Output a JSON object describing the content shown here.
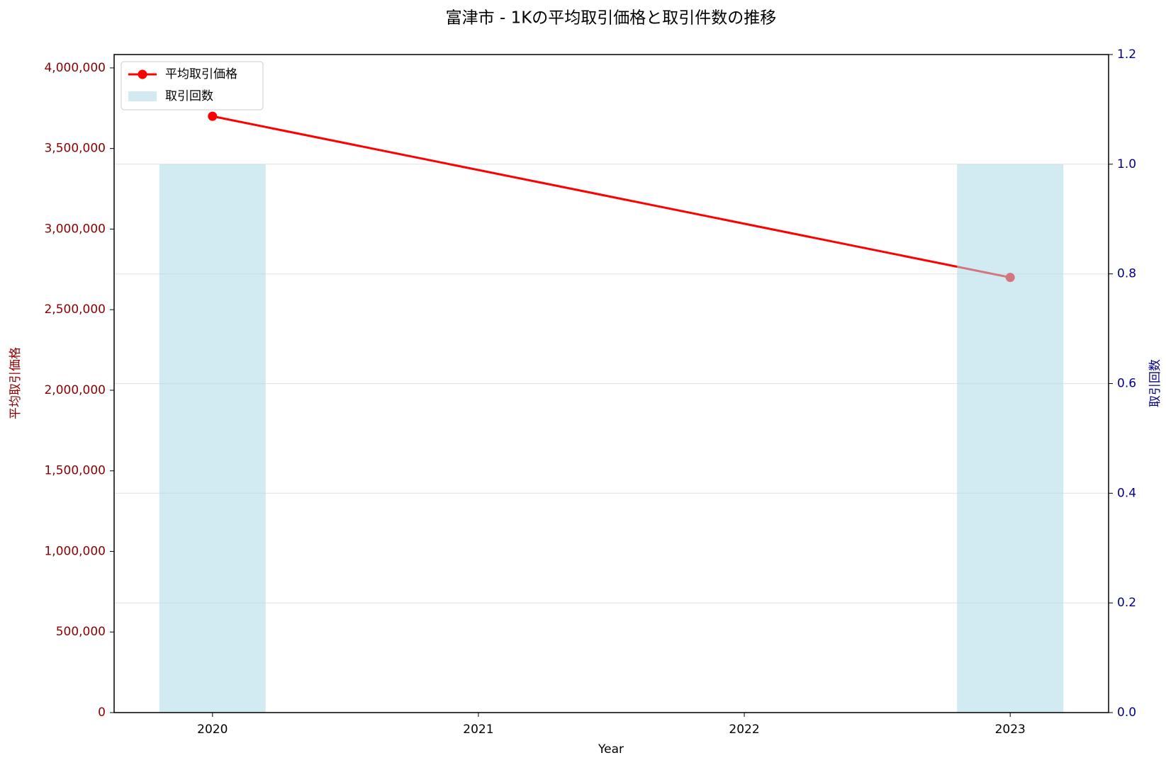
{
  "chart_data": {
    "type": "line",
    "title": "富津市 - 1Kの平均取引価格と取引件数の推移",
    "xlabel": "Year",
    "ylabel": "平均取引価格",
    "y2label": "取引回数",
    "x": [
      2020,
      2023
    ],
    "series": [
      {
        "name": "平均取引価格",
        "type": "line",
        "color": "#ff0000",
        "values": [
          3700000,
          2700000
        ]
      },
      {
        "name": "取引回数",
        "type": "bar",
        "color": "#add8e6",
        "axis": "y2",
        "values": [
          1,
          1
        ]
      }
    ],
    "xlim": [
      2019.63,
      2023.37
    ],
    "xticks": [
      2020,
      2021,
      2022,
      2023
    ],
    "ylim": [
      0,
      4083000
    ],
    "yticks": [
      0,
      {
        "value": 500000,
        "label": "500,000"
      },
      {
        "value": 1000000,
        "label": "1,000,000"
      },
      {
        "value": 1500000,
        "label": "1,500,000"
      },
      {
        "value": 2000000,
        "label": "2,000,000"
      },
      {
        "value": 2500000,
        "label": "2,500,000"
      },
      {
        "value": 3000000,
        "label": "3,000,000"
      },
      {
        "value": 3500000,
        "label": "3,500,000"
      },
      {
        "value": 4000000,
        "label": "4,000,000"
      }
    ],
    "y2lim": [
      0,
      1.2
    ],
    "y2ticks": [
      {
        "value": 0,
        "label": "0.0"
      },
      {
        "value": 0.2,
        "label": "0.2"
      },
      {
        "value": 0.4,
        "label": "0.4"
      },
      {
        "value": 0.6,
        "label": "0.6"
      },
      {
        "value": 0.8,
        "label": "0.8"
      },
      {
        "value": 1,
        "label": "1.0"
      },
      {
        "value": 1.2,
        "label": "1.2"
      }
    ],
    "ycolor": "#8b0000",
    "y2color": "#00008b",
    "grid": true,
    "legend": "upper left"
  }
}
